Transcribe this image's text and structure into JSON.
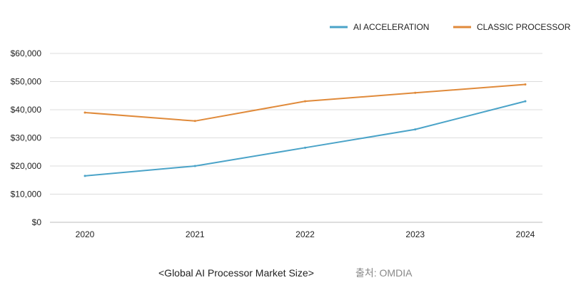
{
  "chart_data": {
    "type": "line",
    "title": "",
    "xlabel": "",
    "ylabel": "",
    "categories": [
      "2020",
      "2021",
      "2022",
      "2023",
      "2024"
    ],
    "y_ticks": [
      "$0",
      "$10,000",
      "$20,000",
      "$30,000",
      "$40,000",
      "$50,000",
      "$60,000"
    ],
    "ylim": [
      0,
      60000
    ],
    "grid": true,
    "legend_position": "top-right",
    "series": [
      {
        "name": "AI ACCELERATION",
        "color": "#4aa3c8",
        "values": [
          16500,
          20000,
          26500,
          33000,
          43000
        ]
      },
      {
        "name": "CLASSIC PROCESSOR",
        "color": "#e08a3a",
        "values": [
          39000,
          36000,
          43000,
          46000,
          49000
        ]
      }
    ]
  },
  "caption": "<Global AI Processor Market Size>",
  "source": "출처: OMDIA"
}
